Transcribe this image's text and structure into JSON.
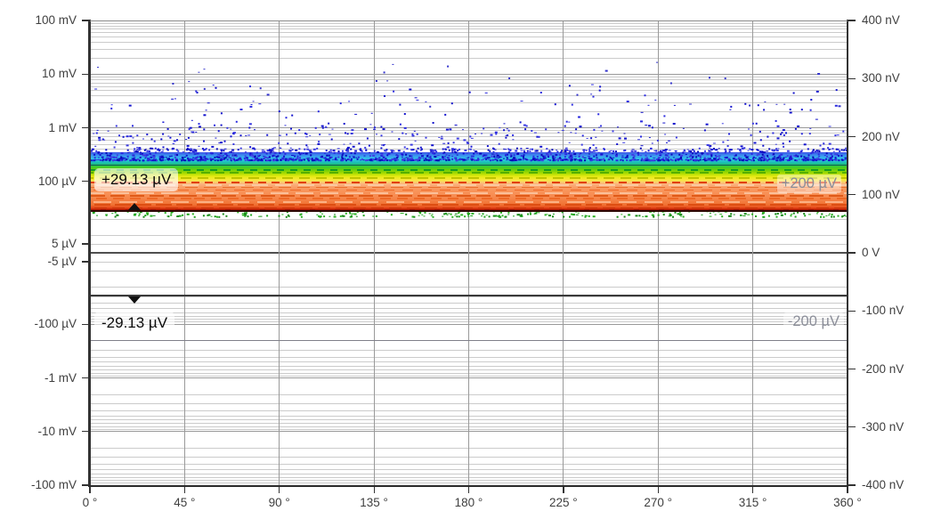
{
  "meta": {
    "background": "#ffffff",
    "description": "Measurement chart: phase (0–360°) vs voltage, symmetric-log left axis, linear nV right axis, noise persistence band with markers and limit lines"
  },
  "chart_data": {
    "type": "heatmap",
    "title": "",
    "x_axis": {
      "unit": "°",
      "min_deg": 0,
      "max_deg": 360,
      "ticks": [
        {
          "label": "0 °",
          "deg": 0
        },
        {
          "label": "45 °",
          "deg": 45
        },
        {
          "label": "90 °",
          "deg": 90
        },
        {
          "label": "135 °",
          "deg": 135
        },
        {
          "label": "180 °",
          "deg": 180
        },
        {
          "label": "225 °",
          "deg": 225
        },
        {
          "label": "270 °",
          "deg": 270
        },
        {
          "label": "315 °",
          "deg": 315
        },
        {
          "label": "360 °",
          "deg": 360
        }
      ]
    },
    "y_axis_left": {
      "scale": "symlog",
      "linthresh_uV": 10,
      "range_uV": [
        -100000,
        100000
      ],
      "ticks": [
        {
          "label": "100 mV",
          "uV": 100000
        },
        {
          "label": "10 mV",
          "uV": 10000
        },
        {
          "label": "1 mV",
          "uV": 1000
        },
        {
          "label": "100 µV",
          "uV": 100
        },
        {
          "label": "5 µV",
          "uV": 5
        },
        {
          "label": "-5 µV",
          "uV": -5
        },
        {
          "label": "-100 µV",
          "uV": -100
        },
        {
          "label": "-1 mV",
          "uV": -1000
        },
        {
          "label": "-10 mV",
          "uV": -10000
        },
        {
          "label": "-100 mV",
          "uV": -100000
        }
      ]
    },
    "y_axis_right": {
      "scale": "linear",
      "range_nV": [
        -400,
        400
      ],
      "ticks": [
        {
          "label": "400 nV",
          "nV": 400
        },
        {
          "label": "300 nV",
          "nV": 300
        },
        {
          "label": "200 nV",
          "nV": 200
        },
        {
          "label": "100 nV",
          "nV": 100
        },
        {
          "label": "0 V",
          "nV": 0
        },
        {
          "label": "-100 nV",
          "nV": -100
        },
        {
          "label": "-200 nV",
          "nV": -200
        },
        {
          "label": "-300 nV",
          "nV": -300
        },
        {
          "label": "-400 nV",
          "nV": -400
        }
      ]
    },
    "markers": [
      {
        "label": "+29.13 µV",
        "uV": 29.13,
        "x_deg": 21,
        "dir": "up"
      },
      {
        "label": "-29.13 µV",
        "uV": -29.13,
        "x_deg": 21,
        "dir": "down"
      }
    ],
    "limit_lines": [
      {
        "label": "+200 µV",
        "uV": 200,
        "color": "#0d5c5c"
      },
      {
        "label": "-200 µV",
        "uV": -200,
        "color": "#80808a"
      }
    ],
    "noise_band": {
      "top_uV": 345,
      "bottom_uV": 29.13,
      "gradient": [
        [
          345,
          "#3E54E8"
        ],
        [
          290,
          "#3AA0F0"
        ],
        [
          255,
          "#2EC9E4"
        ],
        [
          215,
          "#19BCA8"
        ],
        [
          195,
          "#2BC742"
        ],
        [
          165,
          "#63CE0B"
        ],
        [
          140,
          "#A8DB00"
        ],
        [
          122,
          "#E7EA14"
        ],
        [
          105,
          "#F8E93E"
        ],
        [
          96,
          "#FAD06C"
        ],
        [
          88,
          "#FBB07E"
        ],
        [
          74,
          "#F99A60"
        ],
        [
          52,
          "#F78A50"
        ],
        [
          36,
          "#F07233"
        ],
        [
          31,
          "#E23C12"
        ],
        [
          29.3,
          "#8F0A00"
        ]
      ],
      "stripes": [
        [
          170,
          "#129A22",
          8,
          7
        ],
        [
          150,
          "#55B000",
          10,
          6
        ],
        [
          118,
          "#BFC400",
          12,
          7
        ],
        [
          99,
          "#E04012",
          9,
          6
        ],
        [
          88,
          "#FBC9A0",
          18,
          8
        ],
        [
          80,
          "#E8702E",
          14,
          7
        ],
        [
          71,
          "#EE6A28",
          12,
          9
        ],
        [
          63,
          "#FBC09A",
          20,
          8
        ],
        [
          56,
          "#E05A18",
          16,
          6
        ],
        [
          49,
          "#EE6A28",
          12,
          7
        ],
        [
          43,
          "#FBB184",
          20,
          9
        ],
        [
          38,
          "#DD4E12",
          18,
          5
        ],
        [
          33,
          "#CC3A0C",
          14,
          6
        ],
        [
          30.5,
          "#B01800",
          22,
          6
        ]
      ]
    },
    "scatter": {
      "description": "blue peak-noise dots above the band, density increasing toward the band top edge; green residue dots just below the band",
      "seed": 42,
      "layers": [
        {
          "count": 1450,
          "v_min_uV": 255,
          "v_max_uV": 430,
          "bias": 2.6,
          "colors": [
            "#1414CD",
            "#2B2BDF",
            "#0909B8",
            "#4040E2"
          ]
        },
        {
          "count": 330,
          "v_min_uV": 380,
          "v_max_uV": 1250,
          "bias": 2.1,
          "colors": [
            "#1414CD",
            "#3A3AE0"
          ]
        },
        {
          "count": 150,
          "v_min_uV": 700,
          "v_max_uV": 6500,
          "bias": 1.7,
          "colors": [
            "#1414CD",
            "#2B2BDF"
          ]
        },
        {
          "count": 30,
          "v_min_uV": 2500,
          "v_max_uV": 18000,
          "bias": 1.3,
          "colors": [
            "#3333CC"
          ]
        }
      ],
      "green_layer": {
        "count": 300,
        "v_min_uV": 22.5,
        "v_max_uV": 29,
        "bias": 1.6,
        "colors": [
          "#1FA51F",
          "#2BB022",
          "#188A18"
        ]
      }
    },
    "colors": {
      "grid_minor": "#cbcbcb",
      "grid_major": "#9a9a9a",
      "zero_line": "#4f4f4f",
      "axis_spine": "#333333",
      "tick_text": "#3f3f3f",
      "marker_line_negative": "#3a3a3a",
      "marker_line_positive": "#2b0500",
      "scatter_blue": "#1414CD"
    }
  }
}
